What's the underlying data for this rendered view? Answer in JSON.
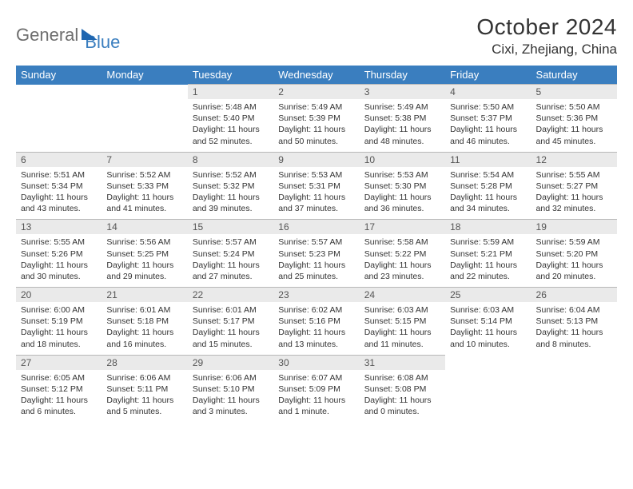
{
  "logo": {
    "part1": "General",
    "part2": "Blue"
  },
  "title": "October 2024",
  "location": "Cixi, Zhejiang, China",
  "colors": {
    "header_bg": "#3a7ebf",
    "header_text": "#ffffff",
    "daynum_bg": "#eaeaea",
    "daynum_border": "#b8b8b8",
    "text": "#333333",
    "logo_gray": "#6e6e6e",
    "logo_blue": "#3a7ebf"
  },
  "weekdays": [
    "Sunday",
    "Monday",
    "Tuesday",
    "Wednesday",
    "Thursday",
    "Friday",
    "Saturday"
  ],
  "weeks": [
    [
      null,
      null,
      {
        "n": "1",
        "sr": "5:48 AM",
        "ss": "5:40 PM",
        "dl": "11 hours and 52 minutes."
      },
      {
        "n": "2",
        "sr": "5:49 AM",
        "ss": "5:39 PM",
        "dl": "11 hours and 50 minutes."
      },
      {
        "n": "3",
        "sr": "5:49 AM",
        "ss": "5:38 PM",
        "dl": "11 hours and 48 minutes."
      },
      {
        "n": "4",
        "sr": "5:50 AM",
        "ss": "5:37 PM",
        "dl": "11 hours and 46 minutes."
      },
      {
        "n": "5",
        "sr": "5:50 AM",
        "ss": "5:36 PM",
        "dl": "11 hours and 45 minutes."
      }
    ],
    [
      {
        "n": "6",
        "sr": "5:51 AM",
        "ss": "5:34 PM",
        "dl": "11 hours and 43 minutes."
      },
      {
        "n": "7",
        "sr": "5:52 AM",
        "ss": "5:33 PM",
        "dl": "11 hours and 41 minutes."
      },
      {
        "n": "8",
        "sr": "5:52 AM",
        "ss": "5:32 PM",
        "dl": "11 hours and 39 minutes."
      },
      {
        "n": "9",
        "sr": "5:53 AM",
        "ss": "5:31 PM",
        "dl": "11 hours and 37 minutes."
      },
      {
        "n": "10",
        "sr": "5:53 AM",
        "ss": "5:30 PM",
        "dl": "11 hours and 36 minutes."
      },
      {
        "n": "11",
        "sr": "5:54 AM",
        "ss": "5:28 PM",
        "dl": "11 hours and 34 minutes."
      },
      {
        "n": "12",
        "sr": "5:55 AM",
        "ss": "5:27 PM",
        "dl": "11 hours and 32 minutes."
      }
    ],
    [
      {
        "n": "13",
        "sr": "5:55 AM",
        "ss": "5:26 PM",
        "dl": "11 hours and 30 minutes."
      },
      {
        "n": "14",
        "sr": "5:56 AM",
        "ss": "5:25 PM",
        "dl": "11 hours and 29 minutes."
      },
      {
        "n": "15",
        "sr": "5:57 AM",
        "ss": "5:24 PM",
        "dl": "11 hours and 27 minutes."
      },
      {
        "n": "16",
        "sr": "5:57 AM",
        "ss": "5:23 PM",
        "dl": "11 hours and 25 minutes."
      },
      {
        "n": "17",
        "sr": "5:58 AM",
        "ss": "5:22 PM",
        "dl": "11 hours and 23 minutes."
      },
      {
        "n": "18",
        "sr": "5:59 AM",
        "ss": "5:21 PM",
        "dl": "11 hours and 22 minutes."
      },
      {
        "n": "19",
        "sr": "5:59 AM",
        "ss": "5:20 PM",
        "dl": "11 hours and 20 minutes."
      }
    ],
    [
      {
        "n": "20",
        "sr": "6:00 AM",
        "ss": "5:19 PM",
        "dl": "11 hours and 18 minutes."
      },
      {
        "n": "21",
        "sr": "6:01 AM",
        "ss": "5:18 PM",
        "dl": "11 hours and 16 minutes."
      },
      {
        "n": "22",
        "sr": "6:01 AM",
        "ss": "5:17 PM",
        "dl": "11 hours and 15 minutes."
      },
      {
        "n": "23",
        "sr": "6:02 AM",
        "ss": "5:16 PM",
        "dl": "11 hours and 13 minutes."
      },
      {
        "n": "24",
        "sr": "6:03 AM",
        "ss": "5:15 PM",
        "dl": "11 hours and 11 minutes."
      },
      {
        "n": "25",
        "sr": "6:03 AM",
        "ss": "5:14 PM",
        "dl": "11 hours and 10 minutes."
      },
      {
        "n": "26",
        "sr": "6:04 AM",
        "ss": "5:13 PM",
        "dl": "11 hours and 8 minutes."
      }
    ],
    [
      {
        "n": "27",
        "sr": "6:05 AM",
        "ss": "5:12 PM",
        "dl": "11 hours and 6 minutes."
      },
      {
        "n": "28",
        "sr": "6:06 AM",
        "ss": "5:11 PM",
        "dl": "11 hours and 5 minutes."
      },
      {
        "n": "29",
        "sr": "6:06 AM",
        "ss": "5:10 PM",
        "dl": "11 hours and 3 minutes."
      },
      {
        "n": "30",
        "sr": "6:07 AM",
        "ss": "5:09 PM",
        "dl": "11 hours and 1 minute."
      },
      {
        "n": "31",
        "sr": "6:08 AM",
        "ss": "5:08 PM",
        "dl": "11 hours and 0 minutes."
      },
      null,
      null
    ]
  ],
  "labels": {
    "sunrise": "Sunrise: ",
    "sunset": "Sunset: ",
    "daylight": "Daylight: "
  }
}
